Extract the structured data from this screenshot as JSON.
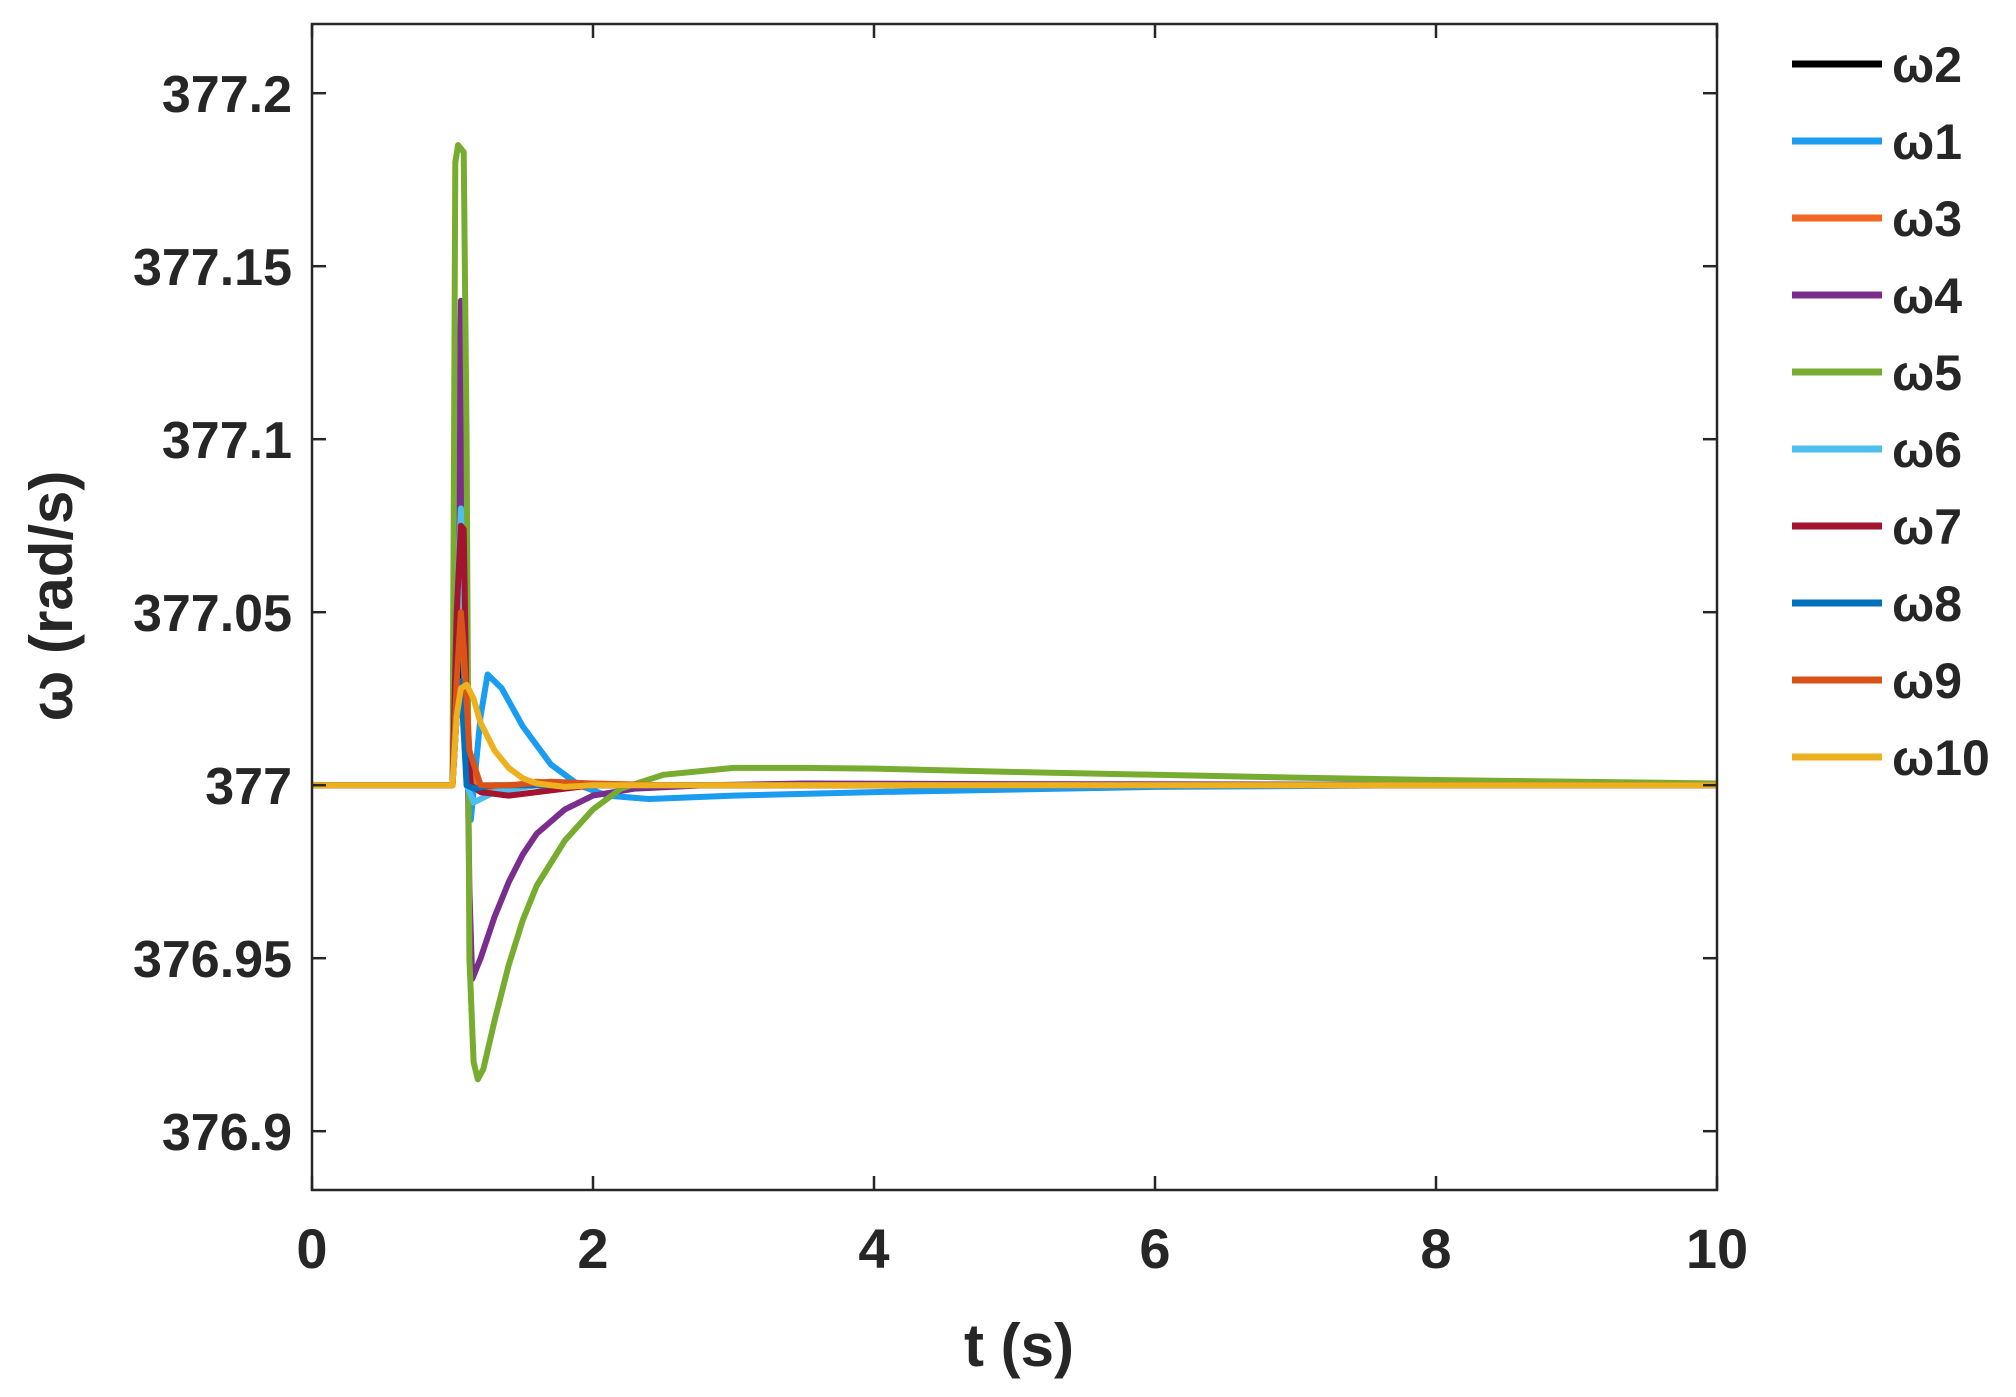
{
  "chart_data": {
    "type": "line",
    "title": "",
    "xlabel": "t (s)",
    "ylabel": "ω (rad/s)",
    "xlim": [
      0,
      10
    ],
    "ylim": [
      376.883,
      377.22
    ],
    "xticks": [
      0,
      2,
      4,
      6,
      8,
      10
    ],
    "xtick_labels": [
      "0",
      "2",
      "4",
      "6",
      "8",
      "10"
    ],
    "yticks": [
      376.9,
      376.95,
      377,
      377.05,
      377.1,
      377.15,
      377.2
    ],
    "ytick_labels": [
      "376.9",
      "376.95",
      "377",
      "377.05",
      "377.1",
      "377.15",
      "377.2"
    ],
    "grid": false,
    "legend_position": "outside-right",
    "series": [
      {
        "name": "ω2",
        "color": "#000000",
        "x": [
          0,
          1.0,
          1.03,
          1.06,
          1.09,
          1.12,
          1.2,
          1.4,
          10
        ],
        "y": [
          377,
          377,
          377.02,
          377.035,
          377.01,
          377.0,
          376.999,
          377.0,
          377
        ]
      },
      {
        "name": "ω1",
        "color": "#1a9cf0",
        "x": [
          0,
          1.0,
          1.03,
          1.06,
          1.09,
          1.13,
          1.2,
          1.25,
          1.35,
          1.5,
          1.7,
          1.9,
          2.1,
          2.4,
          3.0,
          4.0,
          6.0,
          8.0,
          10
        ],
        "y": [
          377,
          377,
          377.04,
          377.08,
          377.02,
          376.99,
          377.02,
          377.032,
          377.028,
          377.017,
          377.006,
          377.0,
          376.997,
          376.996,
          376.997,
          376.998,
          376.9995,
          377.0,
          377
        ]
      },
      {
        "name": "ω3",
        "color": "#f26522",
        "x": [
          0,
          1.0,
          1.03,
          1.06,
          1.08,
          1.1,
          1.15,
          1.3,
          1.6,
          2.0,
          3.0,
          10
        ],
        "y": [
          377,
          377,
          377.03,
          377.055,
          377.04,
          377.01,
          377.0,
          376.999,
          377.001,
          377.0,
          377.0,
          377
        ]
      },
      {
        "name": "ω4",
        "color": "#7b2d8e",
        "x": [
          0,
          1.0,
          1.03,
          1.06,
          1.09,
          1.12,
          1.14,
          1.2,
          1.3,
          1.4,
          1.5,
          1.6,
          1.8,
          2.0,
          2.3,
          2.8,
          3.5,
          5.0,
          10
        ],
        "y": [
          377,
          377,
          377.05,
          377.14,
          377.06,
          376.97,
          376.944,
          376.95,
          376.962,
          376.972,
          376.98,
          376.986,
          376.993,
          376.997,
          376.999,
          377.0,
          377.0005,
          377.0003,
          377
        ]
      },
      {
        "name": "ω5",
        "color": "#77ac30",
        "x": [
          0,
          1.0,
          1.02,
          1.04,
          1.06,
          1.08,
          1.1,
          1.12,
          1.15,
          1.18,
          1.22,
          1.3,
          1.4,
          1.5,
          1.6,
          1.8,
          2.0,
          2.2,
          2.5,
          3.0,
          3.5,
          4.0,
          5.0,
          6.0,
          7.0,
          8.0,
          9.0,
          10
        ],
        "y": [
          377,
          377,
          377.18,
          377.185,
          377.184,
          377.183,
          377.1,
          376.95,
          376.92,
          376.915,
          376.918,
          376.932,
          376.948,
          376.961,
          376.971,
          376.984,
          376.993,
          376.999,
          377.003,
          377.005,
          377.005,
          377.0048,
          377.0038,
          377.003,
          377.0022,
          377.0015,
          377.001,
          377.0005
        ]
      },
      {
        "name": "ω6",
        "color": "#4dbeee",
        "x": [
          0,
          1.0,
          1.03,
          1.06,
          1.08,
          1.1,
          1.15,
          1.3,
          1.6,
          2.0,
          10
        ],
        "y": [
          377,
          377,
          377.05,
          377.08,
          377.05,
          377.0,
          376.995,
          376.998,
          377.0,
          377.0,
          377
        ]
      },
      {
        "name": "ω7",
        "color": "#a2142f",
        "x": [
          0,
          1.0,
          1.03,
          1.06,
          1.08,
          1.1,
          1.13,
          1.2,
          1.4,
          1.6,
          2.0,
          3.0,
          10
        ],
        "y": [
          377,
          377,
          377.05,
          377.075,
          377.074,
          377.02,
          377.0,
          376.998,
          376.997,
          376.998,
          377.0,
          377.0,
          377
        ]
      },
      {
        "name": "ω8",
        "color": "#0072bd",
        "x": [
          0,
          1.0,
          1.03,
          1.06,
          1.1,
          1.15,
          1.3,
          10
        ],
        "y": [
          377,
          377,
          377.02,
          377.03,
          377.0,
          376.999,
          377.0,
          377
        ]
      },
      {
        "name": "ω9",
        "color": "#d95319",
        "x": [
          0,
          1.0,
          1.03,
          1.06,
          1.08,
          1.12,
          1.2,
          1.4,
          1.7,
          2.0,
          2.5,
          3.0,
          10
        ],
        "y": [
          377,
          377,
          377.03,
          377.05,
          377.04,
          377.01,
          377.0,
          377.0,
          377.001,
          377.0005,
          377.0,
          377.0,
          377
        ]
      },
      {
        "name": "ω10",
        "color": "#edb120",
        "x": [
          0,
          1.0,
          1.03,
          1.06,
          1.1,
          1.15,
          1.2,
          1.3,
          1.4,
          1.5,
          1.6,
          1.8,
          2.0,
          2.5,
          3.0,
          10
        ],
        "y": [
          377,
          377,
          377.02,
          377.028,
          377.029,
          377.025,
          377.018,
          377.01,
          377.005,
          377.002,
          377.0005,
          376.9995,
          377.0,
          377.0,
          377.0,
          377
        ]
      }
    ]
  }
}
